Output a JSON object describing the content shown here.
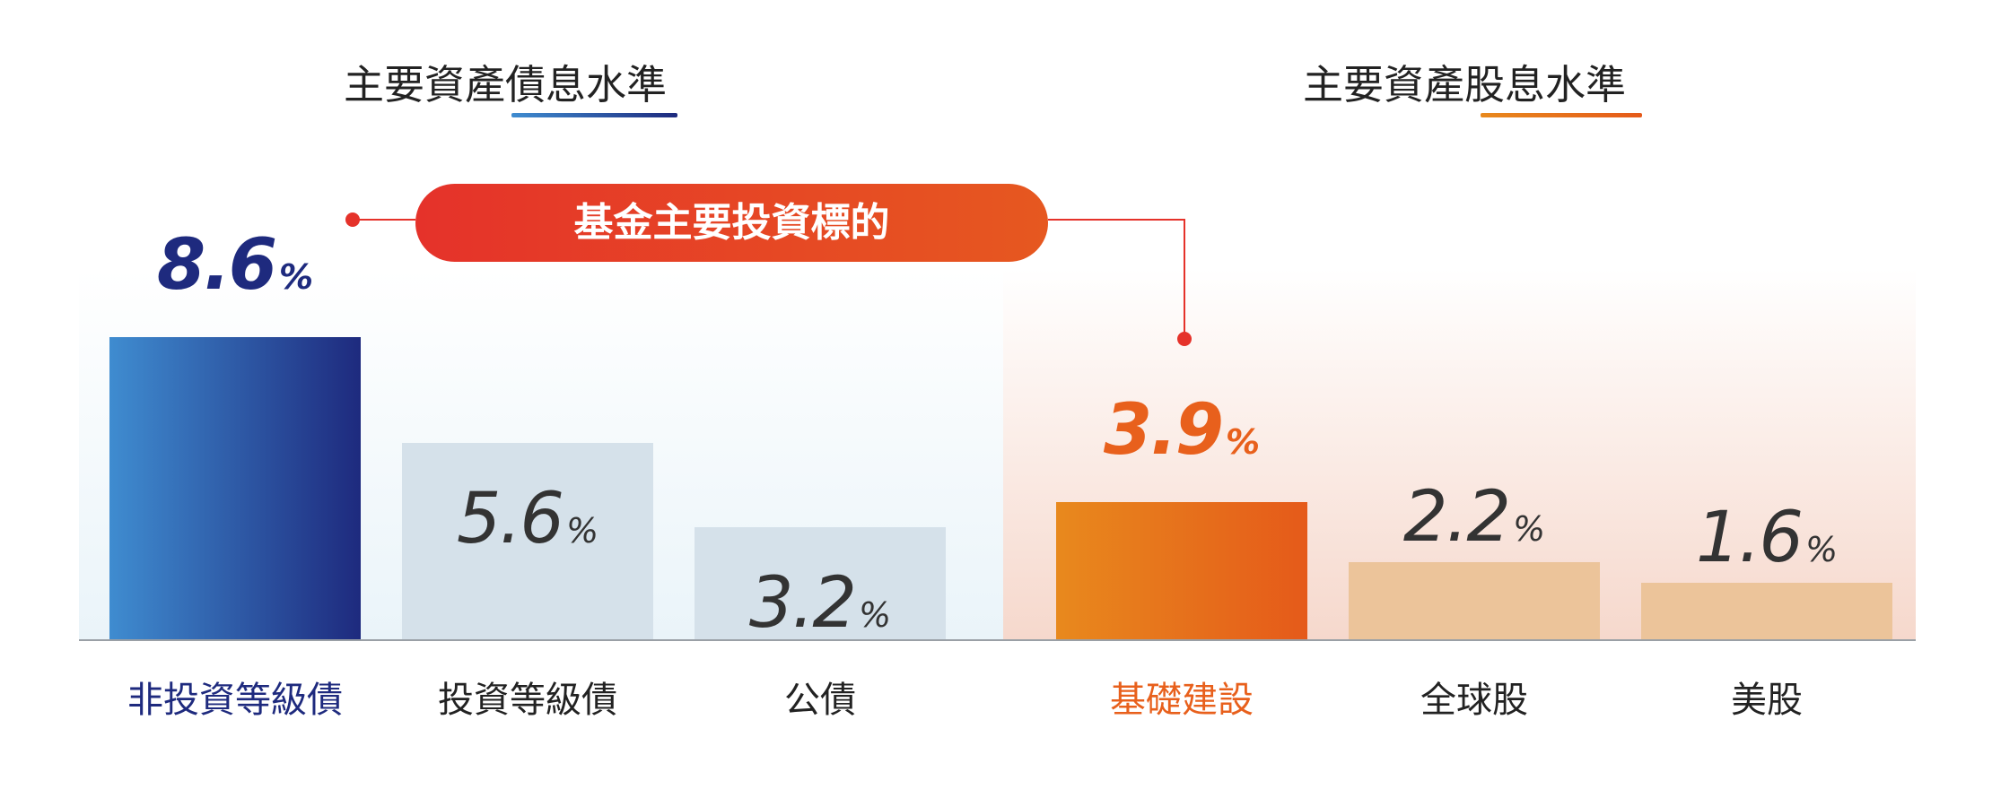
{
  "panels": {
    "bond_title": "主要資產債息水準",
    "equity_title": "主要資產股息水準",
    "highlight_label": "基金主要投資標的"
  },
  "colors": {
    "bond_accent": "#1e2a7e",
    "equity_accent": "#e8601c",
    "bond_muted": "#d5e1ea",
    "equity_muted": "#ecc49a",
    "connector": "#e5322a"
  },
  "chart_data": [
    {
      "type": "bar",
      "title": "主要資產債息水準",
      "categories": [
        "非投資等級債",
        "投資等級債",
        "公債"
      ],
      "values": [
        8.6,
        5.6,
        3.2
      ],
      "unit": "%",
      "highlight_index": 0,
      "ylim": [
        0,
        9.7
      ],
      "grid": false
    },
    {
      "type": "bar",
      "title": "主要資產股息水準",
      "categories": [
        "基礎建設",
        "全球股",
        "美股"
      ],
      "values": [
        3.9,
        2.2,
        1.6
      ],
      "unit": "%",
      "highlight_index": 0,
      "ylim": [
        0,
        9.7
      ],
      "grid": false
    }
  ]
}
